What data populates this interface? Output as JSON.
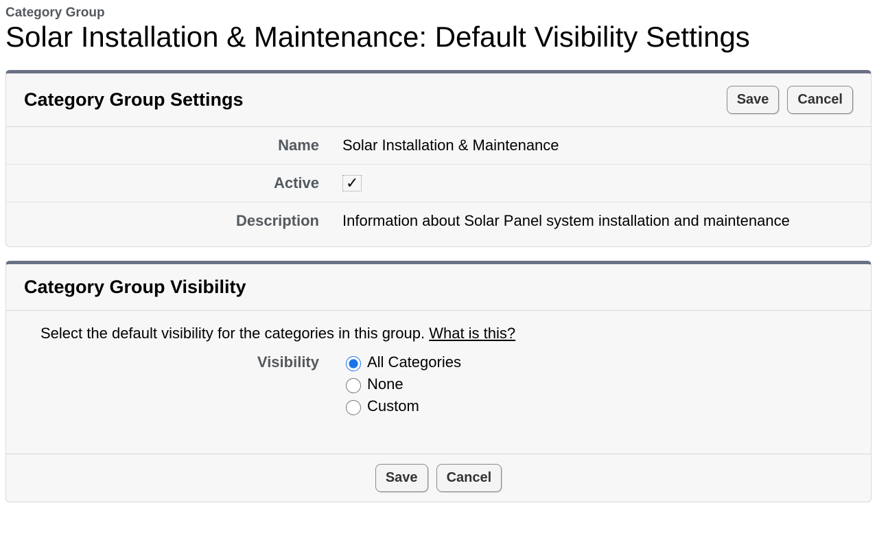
{
  "breadcrumb": "Category Group",
  "page_title": "Solar Installation & Maintenance: Default Visibility Settings",
  "buttons": {
    "save": "Save",
    "cancel": "Cancel"
  },
  "settings_panel": {
    "heading": "Category Group Settings",
    "fields": {
      "name_label": "Name",
      "name_value": "Solar Installation & Maintenance",
      "active_label": "Active",
      "active_checked": "✓",
      "description_label": "Description",
      "description_value": "Information about Solar Panel system installation and maintenance"
    }
  },
  "visibility_panel": {
    "heading": "Category Group Visibility",
    "note_prefix": "Select the default visibility for the categories in this group. ",
    "note_link": "What is this?",
    "field_label": "Visibility",
    "options": {
      "all": "All Categories",
      "none": "None",
      "custom": "Custom"
    },
    "selected": "all"
  },
  "colors": {
    "panel_bg": "#f7f7f7",
    "accent_bar": "#6a7185",
    "label_text": "#54595f",
    "border": "#d8d8d8"
  }
}
